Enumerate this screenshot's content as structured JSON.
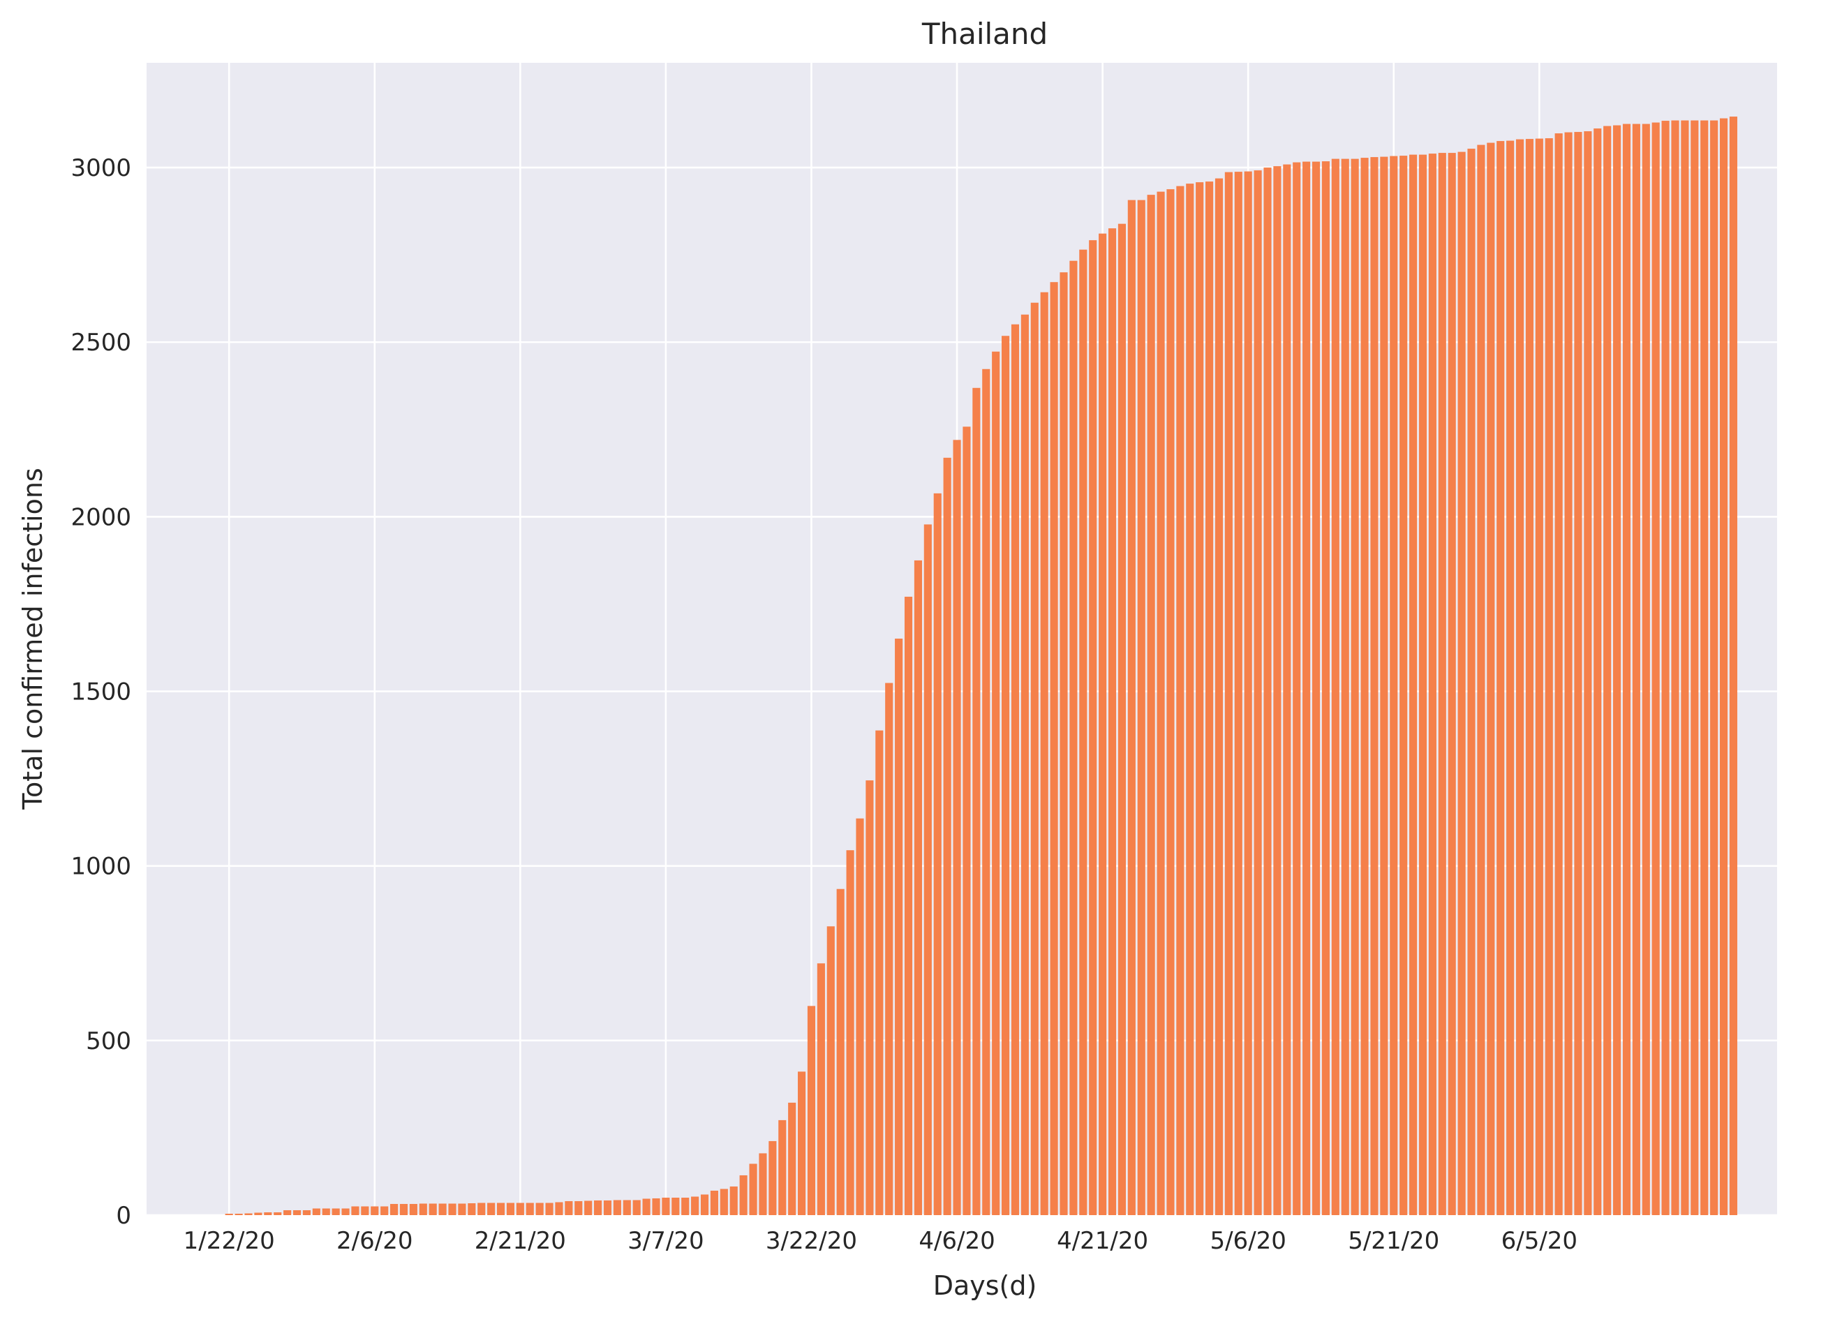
{
  "chart_data": {
    "type": "bar",
    "title": "Thailand",
    "xlabel": "Days(d)",
    "ylabel": "Total confirmed infections",
    "ylim": [
      0,
      3300
    ],
    "xlim": [
      -8.5,
      159.5
    ],
    "grid": true,
    "legend": "none",
    "colors": {
      "bar": "#f5804a",
      "plot_bg": "#eaeaf2",
      "grid": "#ffffff",
      "text": "#262626"
    },
    "yticks": [
      0,
      500,
      1000,
      1500,
      2000,
      2500,
      3000
    ],
    "xtick_labels": [
      "1/22/20",
      "2/6/20",
      "2/21/20",
      "3/7/20",
      "3/22/20",
      "4/6/20",
      "4/21/20",
      "5/6/20",
      "5/21/20",
      "6/5/20"
    ],
    "xtick_indices": [
      0,
      15,
      30,
      45,
      60,
      75,
      90,
      105,
      120,
      135
    ],
    "values": [
      4,
      4,
      5,
      7,
      8,
      8,
      14,
      14,
      14,
      19,
      19,
      19,
      19,
      25,
      25,
      25,
      25,
      32,
      32,
      32,
      33,
      33,
      33,
      33,
      33,
      34,
      35,
      35,
      35,
      35,
      35,
      35,
      35,
      35,
      37,
      40,
      40,
      41,
      42,
      42,
      43,
      43,
      43,
      47,
      48,
      50,
      50,
      50,
      53,
      59,
      70,
      75,
      82,
      114,
      147,
      177,
      212,
      272,
      322,
      411,
      599,
      721,
      827,
      934,
      1045,
      1136,
      1245,
      1388,
      1524,
      1651,
      1771,
      1875,
      1978,
      2067,
      2169,
      2220,
      2258,
      2369,
      2423,
      2473,
      2518,
      2551,
      2579,
      2613,
      2643,
      2672,
      2700,
      2733,
      2765,
      2792,
      2811,
      2826,
      2839,
      2907,
      2907,
      2922,
      2931,
      2938,
      2947,
      2954,
      2958,
      2960,
      2969,
      2987,
      2988,
      2989,
      2992,
      3000,
      3004,
      3009,
      3015,
      3017,
      3017,
      3018,
      3025,
      3025,
      3025,
      3028,
      3030,
      3031,
      3033,
      3034,
      3037,
      3037,
      3040,
      3042,
      3042,
      3045,
      3054,
      3065,
      3071,
      3076,
      3077,
      3081,
      3082,
      3083,
      3084,
      3098,
      3101,
      3102,
      3104,
      3112,
      3119,
      3121,
      3125,
      3125,
      3125,
      3129,
      3134,
      3135,
      3135,
      3135,
      3135,
      3135,
      3141,
      3146
    ]
  }
}
